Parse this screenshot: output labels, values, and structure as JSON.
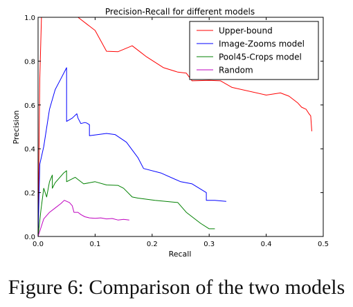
{
  "caption": "Figure 6: Comparison of the two models",
  "chart_data": {
    "type": "line",
    "title": "Precision-Recall for different models",
    "xlabel": "Recall",
    "ylabel": "Precision",
    "xlim": [
      0.0,
      0.5
    ],
    "ylim": [
      0.0,
      1.0
    ],
    "xticks": [
      "0.0",
      "0.1",
      "0.2",
      "0.3",
      "0.4",
      "0.5"
    ],
    "yticks": [
      "0.0",
      "0.2",
      "0.4",
      "0.6",
      "0.8",
      "1.0"
    ],
    "grid": false,
    "legend_position": "top-right",
    "series": [
      {
        "name": "Upper-bound",
        "color": "#ff0000",
        "x": [
          0.0,
          0.003,
          0.006,
          0.07,
          0.095,
          0.1,
          0.12,
          0.14,
          0.165,
          0.18,
          0.19,
          0.22,
          0.245,
          0.26,
          0.27,
          0.3,
          0.32,
          0.34,
          0.4,
          0.425,
          0.44,
          0.455,
          0.462,
          0.47,
          0.475,
          0.478,
          0.48
        ],
        "y": [
          0.0,
          0.72,
          1.0,
          1.0,
          0.95,
          0.94,
          0.845,
          0.843,
          0.87,
          0.84,
          0.82,
          0.77,
          0.75,
          0.745,
          0.71,
          0.712,
          0.71,
          0.68,
          0.645,
          0.655,
          0.64,
          0.61,
          0.59,
          0.58,
          0.56,
          0.55,
          0.48
        ]
      },
      {
        "name": "Image-Zooms model",
        "color": "#0000ff",
        "x": [
          0.0,
          0.003,
          0.01,
          0.02,
          0.03,
          0.04,
          0.05,
          0.05,
          0.06,
          0.068,
          0.07,
          0.075,
          0.082,
          0.085,
          0.09,
          0.09,
          0.12,
          0.135,
          0.155,
          0.175,
          0.185,
          0.215,
          0.25,
          0.27,
          0.295,
          0.295,
          0.31,
          0.33
        ],
        "y": [
          0.0,
          0.33,
          0.41,
          0.58,
          0.67,
          0.72,
          0.77,
          0.525,
          0.54,
          0.56,
          0.54,
          0.515,
          0.52,
          0.518,
          0.51,
          0.46,
          0.47,
          0.465,
          0.43,
          0.36,
          0.31,
          0.29,
          0.25,
          0.24,
          0.2,
          0.165,
          0.165,
          0.16
        ]
      },
      {
        "name": "Pool45-Crops model",
        "color": "#008000",
        "x": [
          0.0,
          0.005,
          0.01,
          0.015,
          0.02,
          0.025,
          0.025,
          0.03,
          0.035,
          0.045,
          0.05,
          0.05,
          0.065,
          0.07,
          0.08,
          0.1,
          0.12,
          0.14,
          0.15,
          0.165,
          0.175,
          0.205,
          0.245,
          0.26,
          0.285,
          0.3,
          0.31
        ],
        "y": [
          0.0,
          0.12,
          0.22,
          0.18,
          0.25,
          0.28,
          0.22,
          0.245,
          0.26,
          0.29,
          0.3,
          0.25,
          0.27,
          0.26,
          0.24,
          0.25,
          0.235,
          0.233,
          0.22,
          0.18,
          0.175,
          0.165,
          0.155,
          0.11,
          0.06,
          0.035,
          0.035
        ]
      },
      {
        "name": "Random",
        "color": "#bf00bf",
        "x": [
          0.0,
          0.01,
          0.02,
          0.03,
          0.04,
          0.046,
          0.055,
          0.06,
          0.063,
          0.07,
          0.075,
          0.082,
          0.09,
          0.1,
          0.11,
          0.12,
          0.13,
          0.14,
          0.15,
          0.16
        ],
        "y": [
          0.0,
          0.08,
          0.11,
          0.13,
          0.15,
          0.165,
          0.155,
          0.14,
          0.11,
          0.11,
          0.1,
          0.09,
          0.085,
          0.083,
          0.085,
          0.08,
          0.082,
          0.075,
          0.078,
          0.075
        ]
      }
    ]
  }
}
